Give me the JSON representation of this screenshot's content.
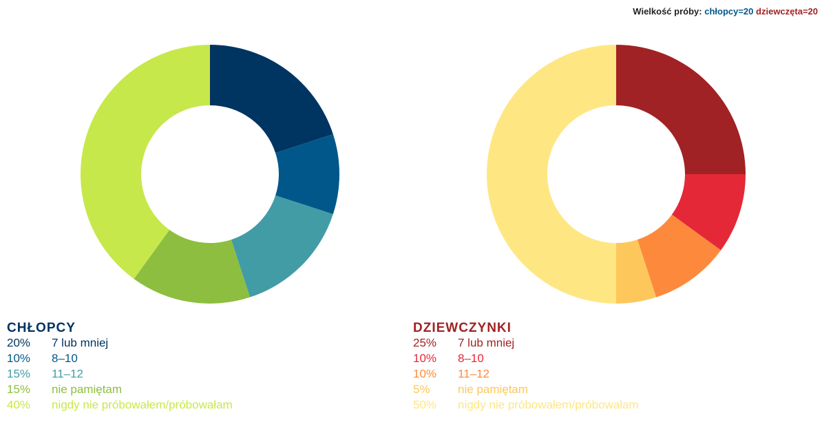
{
  "sample": {
    "label": "Wielkość próby:",
    "boys": "chłopcy=20",
    "girls": "dziewczęta=20"
  },
  "chart_data": [
    {
      "type": "pie",
      "title": "CHŁOPCY",
      "title_color": "#003461",
      "categories": [
        "7 lub mniej",
        "8–10",
        "11–12",
        "nie pamiętam",
        "nigdy nie próbowałem/próbowałam"
      ],
      "values": [
        20,
        10,
        15,
        15,
        40
      ],
      "value_labels": [
        "20%",
        "10%",
        "15%",
        "15%",
        "40%"
      ],
      "colors": [
        "#003461",
        "#02578a",
        "#429ca6",
        "#8dbe3f",
        "#c7e84a"
      ]
    },
    {
      "type": "pie",
      "title": "DZIEWCZYNKI",
      "title_color": "#a12224",
      "categories": [
        "7 lub mniej",
        "8–10",
        "11–12",
        "nie pamiętam",
        "nigdy nie próbowałem/próbowałam"
      ],
      "values": [
        25,
        10,
        10,
        5,
        50
      ],
      "value_labels": [
        "25%",
        "10%",
        "10%",
        "5%",
        "50%"
      ],
      "colors": [
        "#a12224",
        "#e52837",
        "#fd8a3c",
        "#fec75c",
        "#fee783"
      ]
    }
  ]
}
